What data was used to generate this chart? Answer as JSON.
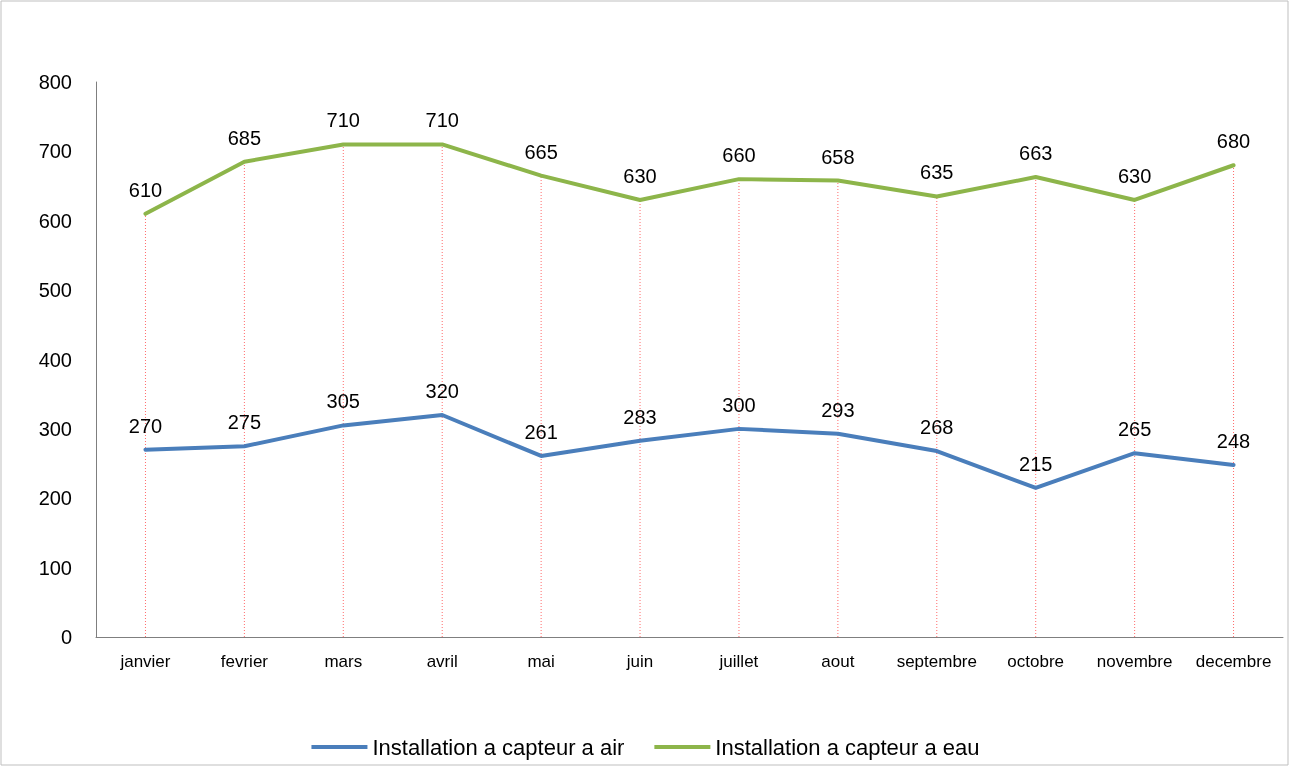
{
  "chart_data": {
    "type": "line",
    "categories": [
      "janvier",
      "fevrier",
      "mars",
      "avril",
      "mai",
      "juin",
      "juillet",
      "aout",
      "septembre",
      "octobre",
      "novembre",
      "decembre"
    ],
    "series": [
      {
        "name": "Installation a capteur a air",
        "color": "#4a7ebb",
        "values": [
          270,
          275,
          305,
          320,
          261,
          283,
          300,
          293,
          268,
          215,
          265,
          248
        ]
      },
      {
        "name": "Installation a capteur a eau",
        "color": "#8db54a",
        "values": [
          610,
          685,
          710,
          710,
          665,
          630,
          660,
          658,
          635,
          663,
          630,
          680
        ]
      }
    ],
    "ylim": [
      0,
      800
    ],
    "yticks": [
      0,
      100,
      200,
      300,
      400,
      500,
      600,
      700,
      800
    ],
    "data_labels": true,
    "grid": "x",
    "legend": "bottom",
    "marker": "none",
    "line_style": "solid"
  }
}
